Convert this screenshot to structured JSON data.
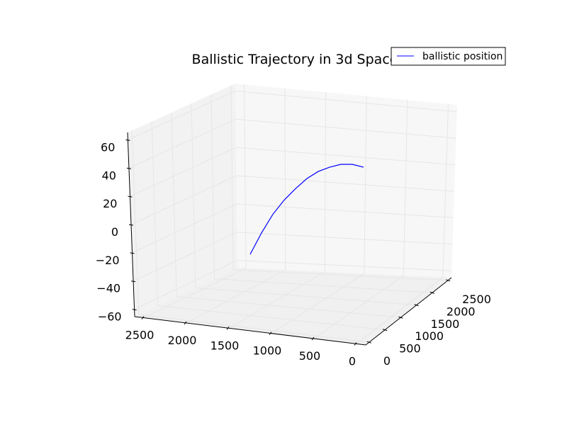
{
  "chart_data": {
    "type": "line",
    "projection": "3d",
    "title": "Ballistic Trajectory in 3d Space",
    "legend": {
      "entries": [
        "ballistic position"
      ],
      "placement": "top-right"
    },
    "axes": {
      "x": {
        "label": "",
        "ticks": [
          "0",
          "500",
          "1000",
          "1500",
          "2000",
          "2500"
        ]
      },
      "y": {
        "label": "",
        "ticks": [
          "2500",
          "2000",
          "1500",
          "1000",
          "500",
          "0"
        ]
      },
      "z": {
        "label": "",
        "ticks": [
          "60",
          "40",
          "20",
          "0",
          "−20",
          "−40",
          "−60"
        ],
        "range": [
          -60,
          60
        ]
      }
    },
    "series": [
      {
        "name": "ballistic position",
        "color": "#0000ff",
        "points": [
          {
            "d": 0,
            "z": -20
          },
          {
            "d": 100,
            "z": -5
          },
          {
            "d": 200,
            "z": 8
          },
          {
            "d": 300,
            "z": 18
          },
          {
            "d": 400,
            "z": 26
          },
          {
            "d": 500,
            "z": 33
          },
          {
            "d": 600,
            "z": 38
          },
          {
            "d": 700,
            "z": 41
          },
          {
            "d": 800,
            "z": 43
          },
          {
            "d": 900,
            "z": 43
          },
          {
            "d": 1000,
            "z": 41
          }
        ]
      }
    ],
    "colors": {
      "pane": "#f2f2f2",
      "grid": "#e6e6e6",
      "line": "#0000ff"
    }
  }
}
